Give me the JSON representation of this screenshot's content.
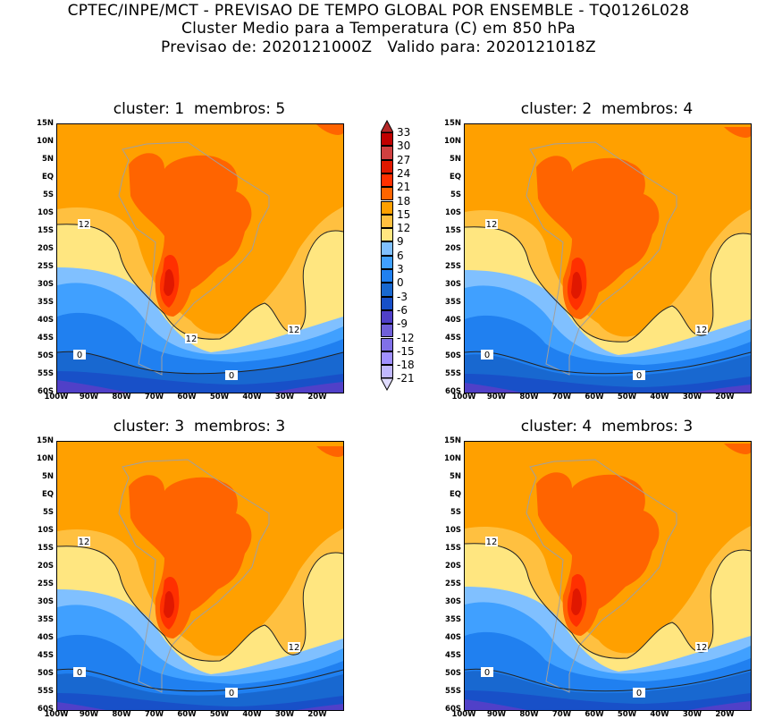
{
  "header": {
    "line1": "CPTEC/INPE/MCT - PREVISAO DE TEMPO GLOBAL POR ENSEMBLE - TQ0126L028",
    "line2": "Cluster Medio para a Temperatura (C) em 850 hPa",
    "line3": "Previsao de: 2020121000Z   Valido para: 2020121018Z"
  },
  "panels": [
    {
      "title": "cluster: 1  membros: 5",
      "contour_labels": [
        "12",
        "12",
        "12",
        "0",
        "0"
      ]
    },
    {
      "title": "cluster: 2  membros: 4",
      "contour_labels": [
        "12",
        "12",
        "0",
        "0"
      ]
    },
    {
      "title": "cluster: 3  membros: 3",
      "contour_labels": [
        "12",
        "12",
        "0",
        "0"
      ]
    },
    {
      "title": "cluster: 4  membros: 3",
      "contour_labels": [
        "12",
        "12",
        "0",
        "0"
      ]
    }
  ],
  "lat_ticks": [
    "15N",
    "10N",
    "5N",
    "EQ",
    "5S",
    "10S",
    "15S",
    "20S",
    "25S",
    "30S",
    "35S",
    "40S",
    "45S",
    "50S",
    "55S",
    "60S"
  ],
  "lon_ticks": [
    "100W",
    "90W",
    "80W",
    "70W",
    "60W",
    "50W",
    "40W",
    "30W",
    "20W"
  ],
  "colorbar": {
    "labels": [
      "33",
      "30",
      "27",
      "24",
      "21",
      "18",
      "15",
      "12",
      "9",
      "6",
      "3",
      "0",
      "-3",
      "-6",
      "-9",
      "-12",
      "-15",
      "-18",
      "-21"
    ],
    "colors": [
      "#c00000",
      "#d04040",
      "#e01800",
      "#ff3000",
      "#ff6400",
      "#ffa000",
      "#ffc040",
      "#ffe680",
      "#80c0ff",
      "#40a0ff",
      "#2080f0",
      "#1868d0",
      "#1850c8",
      "#5040c8",
      "#7060d8",
      "#8070e8",
      "#a090ff",
      "#c0b8ff"
    ],
    "over_color": "#b42828",
    "under_color": "#e0dcff"
  }
}
